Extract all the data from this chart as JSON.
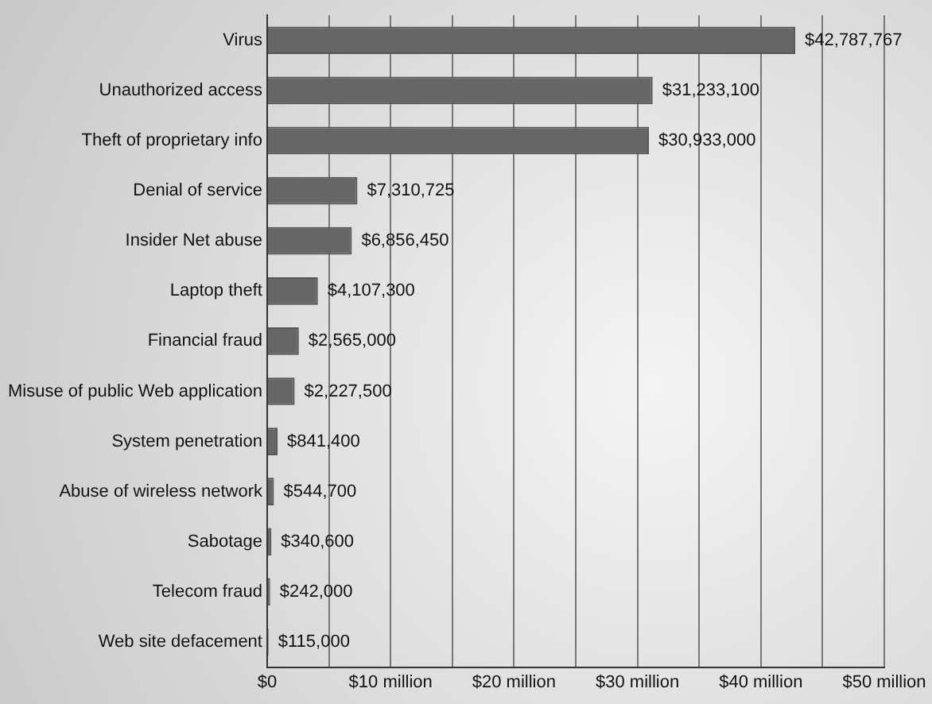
{
  "chart_data": {
    "type": "bar",
    "orientation": "horizontal",
    "categories": [
      "Virus",
      "Unauthorized access",
      "Theft of proprietary info",
      "Denial of service",
      "Insider Net abuse",
      "Laptop theft",
      "Financial fraud",
      "Misuse of public Web application",
      "System penetration",
      "Abuse of wireless network",
      "Sabotage",
      "Telecom fraud",
      "Web site defacement"
    ],
    "values": [
      42787767,
      31233100,
      30933000,
      7310725,
      6856450,
      4107300,
      2565000,
      2227500,
      841400,
      544700,
      340600,
      242000,
      115000
    ],
    "value_labels": [
      "$42,787,767",
      "$31,233,100",
      "$30,933,000",
      "$7,310,725",
      "$6,856,450",
      "$4,107,300",
      "$2,565,000",
      "$2,227,500",
      "$841,400",
      "$544,700",
      "$340,600",
      "$242,000",
      "$115,000"
    ],
    "color": "#666666",
    "xlim": [
      0,
      50000000
    ],
    "xticks": [
      {
        "value": 0,
        "label": "$0"
      },
      {
        "value": 5000000,
        "label": null
      },
      {
        "value": 10000000,
        "label": "$10 million"
      },
      {
        "value": 15000000,
        "label": null
      },
      {
        "value": 20000000,
        "label": "$20 million"
      },
      {
        "value": 25000000,
        "label": null
      },
      {
        "value": 30000000,
        "label": "$30 million"
      },
      {
        "value": 35000000,
        "label": null
      },
      {
        "value": 40000000,
        "label": "$40 million"
      },
      {
        "value": 45000000,
        "label": null
      },
      {
        "value": 50000000,
        "label": "$50 million"
      }
    ],
    "grid": "x",
    "legend": false
  }
}
